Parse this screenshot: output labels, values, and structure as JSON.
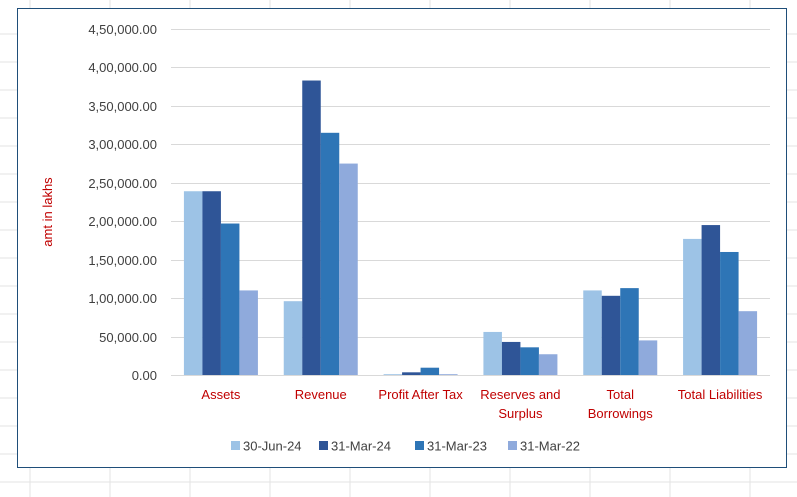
{
  "chart_data": {
    "type": "bar",
    "title": "",
    "xlabel": "",
    "ylabel": "amt in lakhs",
    "ylim": [
      0,
      450000
    ],
    "yticks": [
      0,
      50000,
      100000,
      150000,
      200000,
      250000,
      300000,
      350000,
      400000,
      450000
    ],
    "ytick_labels": [
      "0.00",
      "50,000.00",
      "1,00,000.00",
      "1,50,000.00",
      "2,00,000.00",
      "2,50,000.00",
      "3,00,000.00",
      "3,50,000.00",
      "4,00,000.00",
      "4,50,000.00"
    ],
    "grid": true,
    "legend_position": "bottom",
    "categories": [
      [
        "Assets"
      ],
      [
        "Revenue"
      ],
      [
        "Profit After Tax"
      ],
      [
        "Reserves and",
        "Surplus"
      ],
      [
        "Total",
        "Borrowings"
      ],
      [
        "Total Liabilities"
      ]
    ],
    "series": [
      {
        "name": "30-Jun-24",
        "color": "#9dc3e6",
        "values": [
          239000,
          96000,
          600,
          56000,
          110000,
          177000
        ]
      },
      {
        "name": "31-Mar-24",
        "color": "#2f5597",
        "values": [
          239000,
          383000,
          3500,
          43000,
          103000,
          195000
        ]
      },
      {
        "name": "31-Mar-23",
        "color": "#2e75b6",
        "values": [
          197000,
          315000,
          9500,
          36000,
          113000,
          160000
        ]
      },
      {
        "name": "31-Mar-22",
        "color": "#8faadc",
        "values": [
          110000,
          275000,
          200,
          27000,
          45000,
          83000
        ]
      }
    ]
  }
}
